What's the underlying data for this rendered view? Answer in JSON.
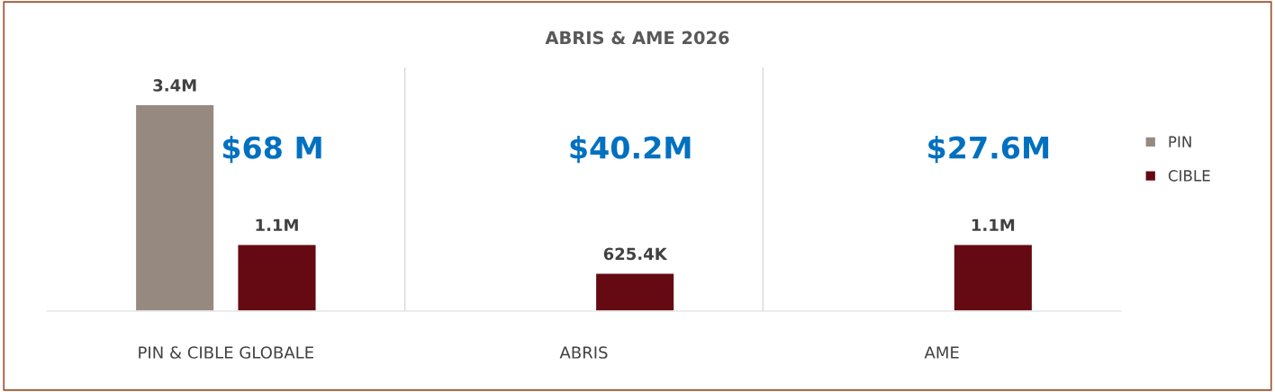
{
  "chart_data": {
    "type": "bar",
    "title": "ABRIS & AME 2026",
    "categories": [
      "PIN & CIBLE GLOBALE",
      "ABRIS",
      "AME"
    ],
    "series": [
      {
        "name": "PIN",
        "color": "#968a80",
        "values": [
          3400000,
          null,
          null
        ],
        "value_labels": [
          "3.4M",
          null,
          null
        ]
      },
      {
        "name": "CIBLE",
        "color": "#650a12",
        "values": [
          1100000,
          625400,
          1100000
        ],
        "value_labels": [
          "1.1M",
          "625.4K",
          "1.1M"
        ]
      }
    ],
    "annotations": [
      "$68 M",
      "$40.2M",
      "$27.6M"
    ],
    "grid": "x",
    "legend": "right"
  }
}
